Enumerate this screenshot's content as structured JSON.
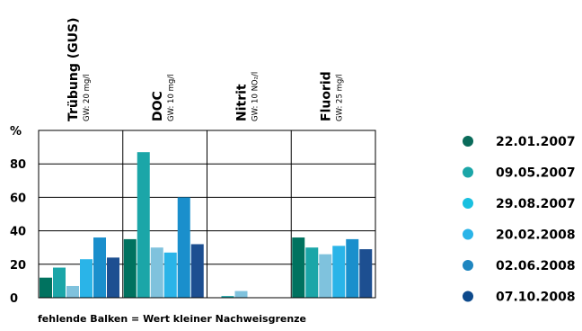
{
  "chart_data": {
    "type": "bar",
    "y_unit": "%",
    "ylim": [
      0,
      100
    ],
    "yticks": [
      "0",
      "20",
      "40",
      "60",
      "80"
    ],
    "grid": true,
    "legend_position": "right",
    "categories": [
      {
        "label": "Trübung (GUS)",
        "sub": "GW: 20 mg/l"
      },
      {
        "label": "DOC",
        "sub": "GW: 10 mg/l"
      },
      {
        "label": "Nitrit",
        "sub": "GW: 10 NO₂/l"
      },
      {
        "label": "Fluorid",
        "sub": "GW: 25 mg/l"
      }
    ],
    "series": [
      {
        "name": "22.01.2007",
        "color": "#00725f",
        "values": [
          12,
          35,
          null,
          36
        ]
      },
      {
        "name": "09.05.2007",
        "color": "#1ba6a8",
        "values": [
          18,
          87,
          1,
          30
        ]
      },
      {
        "name": "29.08.2007",
        "color": "#7fc2dd",
        "values": [
          7,
          30,
          4,
          26
        ]
      },
      {
        "name": "20.02.2008",
        "color": "#2ab4e8",
        "values": [
          23,
          27,
          null,
          31
        ]
      },
      {
        "name": "02.06.2008",
        "color": "#1a8fcc",
        "values": [
          36,
          60,
          null,
          35
        ]
      },
      {
        "name": "07.10.2008",
        "color": "#1d4f91",
        "values": [
          24,
          32,
          null,
          29
        ]
      }
    ],
    "legend_colors": [
      "#0a6b5a",
      "#1ba6a8",
      "#19c0e0",
      "#2ab4e8",
      "#1f86c0",
      "#0d4a8c"
    ],
    "note": "fehlende Balken = Wert kleiner Nachweisgrenze"
  }
}
